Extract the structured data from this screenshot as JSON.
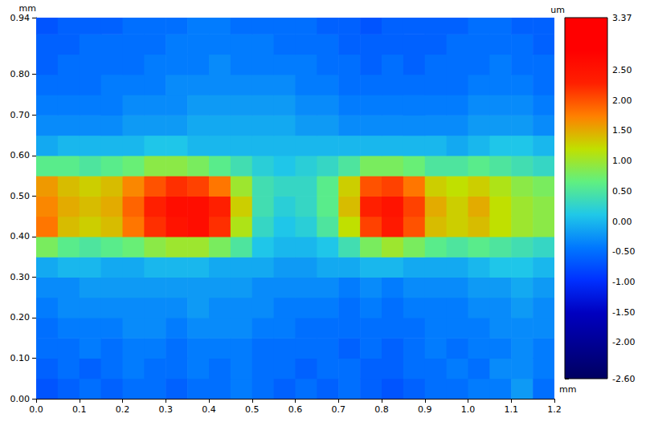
{
  "chart_data": {
    "type": "heatmap",
    "xlabel": "mm",
    "ylabel": "mm",
    "xlim": [
      0,
      1.2
    ],
    "ylim": [
      0,
      0.94
    ],
    "xticks": [
      {
        "value": 0,
        "label": "0.0"
      },
      0.1,
      0.2,
      0.3,
      0.4,
      0.5,
      0.6,
      0.7,
      0.8,
      0.9,
      {
        "value": 1,
        "label": "1.0"
      },
      1.1,
      1.2
    ],
    "yticks": [
      {
        "value": 0,
        "label": "0.00"
      },
      {
        "value": 0.1,
        "label": "0.10"
      },
      {
        "value": 0.2,
        "label": "0.20"
      },
      {
        "value": 0.3,
        "label": "0.30"
      },
      {
        "value": 0.4,
        "label": "0.40"
      },
      {
        "value": 0.5,
        "label": "0.50"
      },
      {
        "value": 0.6,
        "label": "0.60"
      },
      {
        "value": 0.7,
        "label": "0.70"
      },
      {
        "value": 0.8,
        "label": "0.80"
      },
      0.94
    ],
    "grid": false,
    "x": [
      0.025,
      0.075,
      0.125,
      0.175,
      0.225,
      0.275,
      0.325,
      0.375,
      0.425,
      0.475,
      0.525,
      0.575,
      0.625,
      0.675,
      0.725,
      0.775,
      0.825,
      0.875,
      0.925,
      0.975,
      1.025,
      1.075,
      1.125,
      1.175
    ],
    "y": [
      0.025,
      0.075,
      0.125,
      0.175,
      0.225,
      0.275,
      0.325,
      0.375,
      0.425,
      0.475,
      0.525,
      0.575,
      0.625,
      0.675,
      0.725,
      0.775,
      0.825,
      0.875,
      0.925
    ],
    "z": [
      [
        -0.7,
        -0.6,
        -0.5,
        -0.6,
        -0.5,
        -0.5,
        -0.6,
        -0.5,
        -0.5,
        -0.4,
        -0.5,
        -0.6,
        -0.5,
        -0.6,
        -0.5,
        -0.6,
        -0.7,
        -0.6,
        -0.5,
        -0.5,
        -0.4,
        -0.4,
        -0.2,
        -0.5
      ],
      [
        -0.6,
        -0.5,
        -0.6,
        -0.5,
        -0.4,
        -0.5,
        -0.5,
        -0.4,
        -0.5,
        -0.4,
        -0.5,
        -0.5,
        -0.6,
        -0.5,
        -0.5,
        -0.6,
        -0.6,
        -0.5,
        -0.5,
        -0.4,
        -0.5,
        -0.3,
        -0.3,
        -0.4
      ],
      [
        -0.5,
        -0.5,
        -0.4,
        -0.5,
        -0.4,
        -0.4,
        -0.5,
        -0.4,
        -0.4,
        -0.4,
        -0.5,
        -0.5,
        -0.5,
        -0.5,
        -0.6,
        -0.5,
        -0.6,
        -0.5,
        -0.4,
        -0.5,
        -0.4,
        -0.4,
        -0.3,
        -0.4
      ],
      [
        -0.5,
        -0.4,
        -0.4,
        -0.4,
        -0.3,
        -0.3,
        -0.4,
        -0.3,
        -0.3,
        -0.3,
        -0.4,
        -0.4,
        -0.5,
        -0.5,
        -0.5,
        -0.5,
        -0.5,
        -0.5,
        -0.4,
        -0.4,
        -0.4,
        -0.3,
        -0.3,
        -0.3
      ],
      [
        -0.4,
        -0.3,
        -0.3,
        -0.3,
        -0.3,
        -0.3,
        -0.3,
        -0.2,
        -0.3,
        -0.3,
        -0.3,
        -0.4,
        -0.4,
        -0.4,
        -0.5,
        -0.4,
        -0.5,
        -0.4,
        -0.4,
        -0.4,
        -0.3,
        -0.3,
        -0.2,
        -0.3
      ],
      [
        -0.3,
        -0.3,
        -0.2,
        -0.2,
        -0.2,
        -0.2,
        -0.2,
        -0.2,
        -0.2,
        -0.2,
        -0.3,
        -0.3,
        -0.3,
        -0.3,
        -0.4,
        -0.3,
        -0.4,
        -0.3,
        -0.3,
        -0.3,
        -0.2,
        -0.2,
        -0.1,
        -0.2
      ],
      [
        -0.1,
        0.0,
        0.0,
        -0.1,
        -0.1,
        0.0,
        0.0,
        0.0,
        -0.1,
        -0.1,
        -0.1,
        -0.2,
        -0.2,
        -0.1,
        -0.1,
        0.0,
        0.0,
        -0.1,
        -0.1,
        -0.1,
        0.0,
        0.1,
        0.1,
        0.0
      ],
      [
        0.8,
        0.6,
        0.5,
        0.6,
        0.7,
        0.9,
        1.0,
        1.0,
        0.8,
        0.5,
        0.1,
        0.0,
        0.0,
        0.1,
        0.4,
        0.8,
        1.0,
        0.8,
        0.6,
        0.5,
        0.6,
        0.5,
        0.4,
        0.3
      ],
      [
        1.8,
        1.4,
        1.3,
        1.4,
        1.8,
        2.2,
        2.5,
        2.6,
        2.2,
        1.1,
        0.3,
        0.1,
        0.2,
        0.5,
        1.2,
        2.1,
        2.4,
        2.0,
        1.4,
        1.3,
        1.4,
        1.2,
        1.0,
        0.9
      ],
      [
        1.7,
        1.5,
        1.4,
        1.5,
        1.9,
        2.3,
        2.6,
        2.6,
        2.3,
        1.3,
        0.4,
        0.2,
        0.3,
        0.6,
        1.4,
        2.3,
        2.5,
        2.1,
        1.5,
        1.3,
        1.5,
        1.2,
        1.0,
        0.9
      ],
      [
        1.6,
        1.4,
        1.3,
        1.4,
        1.7,
        2.0,
        2.2,
        2.1,
        1.8,
        1.0,
        0.4,
        0.3,
        0.3,
        0.6,
        1.3,
        2.0,
        2.1,
        1.8,
        1.3,
        1.2,
        1.3,
        1.1,
        0.9,
        0.8
      ],
      [
        0.6,
        0.6,
        0.5,
        0.6,
        0.7,
        0.9,
        0.9,
        0.8,
        0.6,
        0.4,
        0.2,
        0.1,
        0.2,
        0.3,
        0.5,
        0.8,
        0.8,
        0.7,
        0.5,
        0.5,
        0.6,
        0.5,
        0.4,
        0.3
      ],
      [
        -0.1,
        0.0,
        0.0,
        0.0,
        0.0,
        0.1,
        0.1,
        0.0,
        0.0,
        0.0,
        0.0,
        0.0,
        0.0,
        0.0,
        0.0,
        0.0,
        0.0,
        0.0,
        0.0,
        -0.1,
        0.0,
        0.1,
        0.1,
        0.0
      ],
      [
        -0.3,
        -0.3,
        -0.3,
        -0.3,
        -0.2,
        -0.2,
        -0.2,
        -0.1,
        -0.1,
        -0.1,
        -0.1,
        -0.1,
        -0.2,
        -0.2,
        -0.3,
        -0.3,
        -0.3,
        -0.3,
        -0.3,
        -0.3,
        -0.2,
        -0.2,
        -0.2,
        -0.3
      ],
      [
        -0.4,
        -0.4,
        -0.4,
        -0.4,
        -0.3,
        -0.3,
        -0.3,
        -0.2,
        -0.2,
        -0.2,
        -0.2,
        -0.2,
        -0.3,
        -0.3,
        -0.4,
        -0.4,
        -0.4,
        -0.4,
        -0.4,
        -0.4,
        -0.3,
        -0.3,
        -0.3,
        -0.4
      ],
      [
        -0.5,
        -0.5,
        -0.5,
        -0.4,
        -0.4,
        -0.4,
        -0.3,
        -0.3,
        -0.3,
        -0.3,
        -0.3,
        -0.3,
        -0.4,
        -0.4,
        -0.5,
        -0.5,
        -0.5,
        -0.5,
        -0.5,
        -0.5,
        -0.4,
        -0.4,
        -0.4,
        -0.5
      ],
      [
        -0.6,
        -0.5,
        -0.5,
        -0.5,
        -0.5,
        -0.4,
        -0.4,
        -0.4,
        -0.3,
        -0.4,
        -0.4,
        -0.4,
        -0.4,
        -0.5,
        -0.5,
        -0.6,
        -0.5,
        -0.6,
        -0.5,
        -0.5,
        -0.5,
        -0.4,
        -0.5,
        -0.5
      ],
      [
        -0.6,
        -0.6,
        -0.5,
        -0.5,
        -0.5,
        -0.5,
        -0.4,
        -0.4,
        -0.4,
        -0.4,
        -0.4,
        -0.5,
        -0.5,
        -0.5,
        -0.6,
        -0.6,
        -0.6,
        -0.6,
        -0.6,
        -0.5,
        -0.5,
        -0.5,
        -0.5,
        -0.6
      ],
      [
        -0.7,
        -0.6,
        -0.6,
        -0.6,
        -0.5,
        -0.5,
        -0.5,
        -0.4,
        -0.4,
        -0.5,
        -0.5,
        -0.5,
        -0.5,
        -0.6,
        -0.6,
        -0.7,
        -0.6,
        -0.6,
        -0.6,
        -0.6,
        -0.5,
        -0.5,
        -0.6,
        -0.6
      ]
    ],
    "colorbar": {
      "label": "um",
      "range": [
        -2.6,
        3.37
      ],
      "ticks": [
        3.37,
        {
          "value": 2.5,
          "label": "2.50"
        },
        {
          "value": 2,
          "label": "2.00"
        },
        {
          "value": 1.5,
          "label": "1.50"
        },
        {
          "value": 1,
          "label": "1.00"
        },
        {
          "value": 0.5,
          "label": "0.50"
        },
        {
          "value": 0,
          "label": "0.00"
        },
        {
          "value": -0.5,
          "label": "-0.50"
        },
        {
          "value": -1,
          "label": "-1.00"
        },
        {
          "value": -1.5,
          "label": "-1.50"
        },
        {
          "value": -2,
          "label": "-2.00"
        },
        {
          "value": -2.6,
          "label": "-2.60"
        }
      ]
    }
  }
}
